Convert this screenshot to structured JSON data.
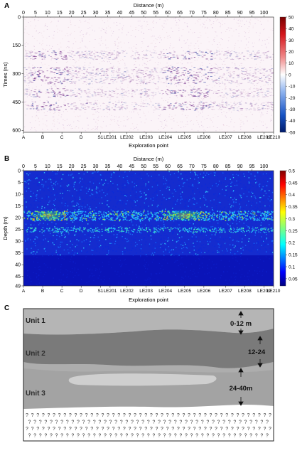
{
  "figure": {
    "panels": [
      "A",
      "B",
      "C"
    ]
  },
  "chart_data": [
    {
      "panel": "A",
      "type": "heatmap",
      "xlabel_top": "Distance (m)",
      "x_ticks": [
        0,
        5,
        10,
        15,
        20,
        25,
        30,
        35,
        40,
        45,
        50,
        55,
        60,
        65,
        70,
        75,
        80,
        85,
        90,
        95,
        100
      ],
      "xlim": [
        0,
        104
      ],
      "ylabel": "Times (ns)",
      "y_ticks": [
        0,
        150,
        300,
        450,
        600
      ],
      "ylim": [
        0,
        610
      ],
      "xlabel_bottom": "Exploration point",
      "exploration_points": [
        "A",
        "B",
        "C",
        "D",
        "S1",
        "LE201",
        "LE202",
        "LE203",
        "LE204",
        "LE205",
        "LE206",
        "LE207",
        "LE208",
        "LE209",
        "LE210"
      ],
      "exploration_point_positions_m": [
        0,
        8,
        16,
        24,
        32,
        36,
        43,
        51,
        59,
        67,
        75,
        84,
        92,
        100,
        104
      ],
      "colorbar": {
        "min": -50,
        "max": 50,
        "ticks": [
          50,
          40,
          30,
          20,
          10,
          0,
          -10,
          -20,
          -30,
          -40,
          -50
        ],
        "colormap": "blue-white-red (seismic)"
      },
      "features": {
        "reflection_bands_ns": [
          200,
          285,
          330,
          400,
          470
        ],
        "strong_zones_m": [
          [
            3,
            18
          ],
          [
            58,
            78
          ]
        ]
      }
    },
    {
      "panel": "B",
      "type": "heatmap",
      "xlabel_top": "Distance (m)",
      "x_ticks": [
        0,
        5,
        10,
        15,
        20,
        25,
        30,
        35,
        40,
        45,
        50,
        55,
        60,
        65,
        70,
        75,
        80,
        85,
        90,
        95,
        100
      ],
      "xlim": [
        0,
        104
      ],
      "ylabel": "Depth (m)",
      "y_ticks": [
        0,
        5,
        10,
        15,
        20,
        25,
        30,
        35,
        40,
        45,
        49
      ],
      "ylim": [
        0,
        49
      ],
      "xlabel_bottom": "Exploration point",
      "exploration_points": [
        "A",
        "B",
        "C",
        "D",
        "S1",
        "LE201",
        "LE202",
        "LE203",
        "LE204",
        "LE205",
        "LE206",
        "LE207",
        "LE208",
        "LE209",
        "LE210"
      ],
      "exploration_point_positions_m": [
        0,
        8,
        16,
        24,
        32,
        36,
        43,
        51,
        59,
        67,
        75,
        84,
        92,
        100,
        104
      ],
      "colorbar": {
        "min": 0.02,
        "max": 0.5,
        "ticks": [
          0.5,
          0.45,
          0.4,
          0.35,
          0.3,
          0.25,
          0.2,
          0.15,
          0.1,
          0.05
        ],
        "colormap": "jet"
      },
      "features": {
        "high_value_band_depth_m": [
          17,
          21
        ],
        "high_value_zones_m": [
          [
            3,
            18
          ],
          [
            58,
            76
          ]
        ],
        "secondary_band_depth_m": [
          24,
          26
        ],
        "low_value_below_m": 36
      }
    }
  ],
  "schematic": {
    "panel": "C",
    "units": [
      {
        "label": "Unit 1",
        "color": "#b2b2b2"
      },
      {
        "label": "Unit 2",
        "color": "#7a7a7a"
      },
      {
        "label": "Unit 3",
        "color": "#a2a2a2"
      }
    ],
    "lens_color": "#cfcfcf",
    "depth_labels": [
      "0-12 m",
      "12-24",
      "24-40m"
    ],
    "unknown_symbol": "?"
  }
}
